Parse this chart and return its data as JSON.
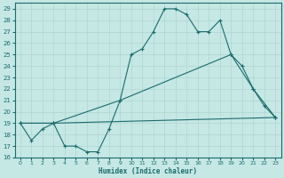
{
  "xlabel": "Humidex (Indice chaleur)",
  "background_color": "#c5e8e5",
  "line_color": "#1a6b6b",
  "grid_color": "#b0d4d0",
  "xlim": [
    -0.5,
    23.5
  ],
  "ylim": [
    16,
    29.5
  ],
  "yticks": [
    16,
    17,
    18,
    19,
    20,
    21,
    22,
    23,
    24,
    25,
    26,
    27,
    28,
    29
  ],
  "xticks": [
    0,
    1,
    2,
    3,
    4,
    5,
    6,
    7,
    8,
    9,
    10,
    11,
    12,
    13,
    14,
    15,
    16,
    17,
    18,
    19,
    20,
    21,
    22,
    23
  ],
  "line1_x": [
    0,
    1,
    2,
    3,
    4,
    5,
    6,
    7,
    8,
    9,
    10,
    11,
    12,
    13,
    14,
    15,
    16,
    17,
    18,
    19,
    20,
    21,
    22,
    23
  ],
  "line1_y": [
    19,
    17.5,
    18.5,
    19,
    17,
    17,
    16.5,
    16.5,
    18.5,
    21,
    25,
    25.5,
    27,
    29,
    29,
    28.5,
    27,
    27,
    28,
    25,
    24,
    22,
    20.5,
    19.5
  ],
  "line2_x": [
    0,
    3,
    23
  ],
  "line2_y": [
    19,
    19,
    19.5
  ],
  "line3_x": [
    0,
    3,
    9,
    19,
    21,
    23
  ],
  "line3_y": [
    19,
    19,
    21,
    25,
    22,
    19.5
  ]
}
